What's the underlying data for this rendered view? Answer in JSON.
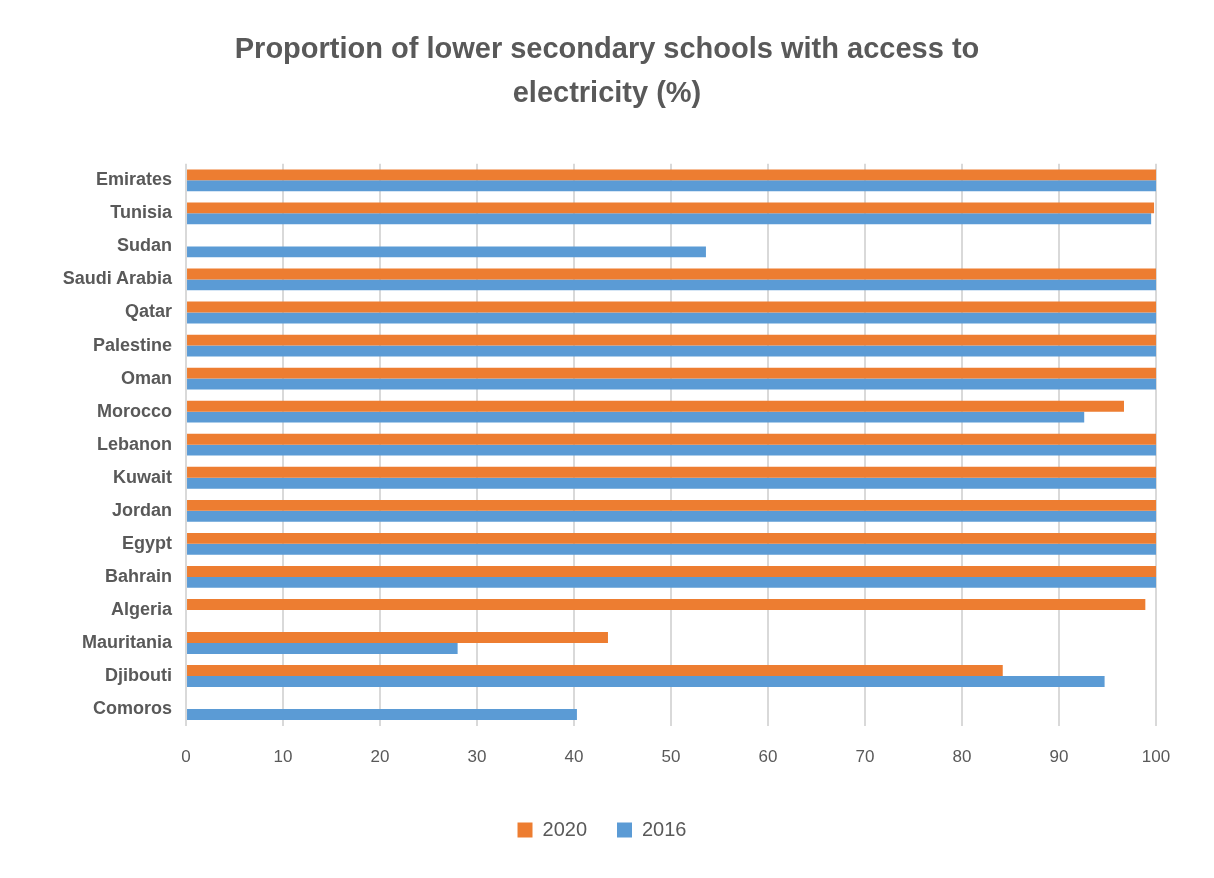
{
  "chart_data": {
    "type": "bar",
    "orientation": "horizontal",
    "title": "Proportion of lower secondary schools with access to electricity (%)",
    "categories": [
      "Emirates",
      "Tunisia",
      "Sudan",
      "Saudi Arabia",
      "Qatar",
      "Palestine",
      "Oman",
      "Morocco",
      "Lebanon",
      "Kuwait",
      "Jordan",
      "Egypt",
      "Bahrain",
      "Algeria",
      "Mauritania",
      "Djibouti",
      "Comoros"
    ],
    "series": [
      {
        "name": "2020",
        "color": "#ed7d31",
        "values": [
          100,
          99.8,
          null,
          100,
          100,
          100,
          100,
          96.7,
          100,
          100,
          100,
          100,
          100,
          98.9,
          43.5,
          84.2,
          null
        ]
      },
      {
        "name": "2016",
        "color": "#5b9bd5",
        "values": [
          100,
          99.5,
          53.6,
          100,
          100,
          100,
          100,
          92.6,
          100,
          100,
          100,
          100,
          100,
          null,
          28,
          94.7,
          40.3
        ]
      }
    ],
    "xlim": [
      0,
      100
    ],
    "xticks": [
      0,
      10,
      20,
      30,
      40,
      50,
      60,
      70,
      80,
      90,
      100
    ],
    "grid": "x",
    "legend": "bottom"
  }
}
